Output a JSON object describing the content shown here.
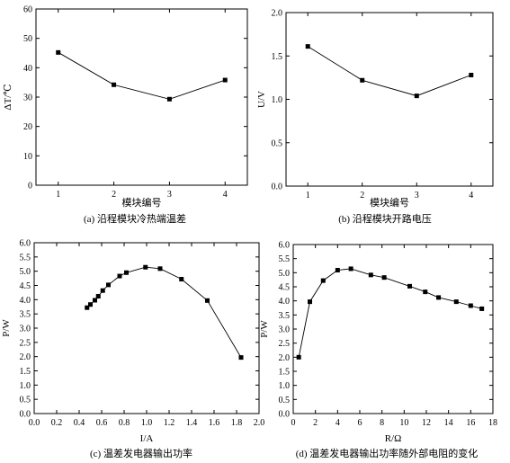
{
  "chart_data": [
    {
      "id": "a",
      "type": "line",
      "caption": "(a) 沿程模块冷热端温差",
      "xlabel": "模块编号",
      "ylabel": "ΔT/℃",
      "x": [
        1,
        2,
        3,
        4
      ],
      "y": [
        45.2,
        34.2,
        29.3,
        35.8
      ],
      "xlim": [
        0.6,
        4.4
      ],
      "ylim": [
        0,
        60
      ],
      "xticks": [
        1,
        2,
        3,
        4
      ],
      "xtick_labels": [
        "1",
        "2",
        "3",
        "4"
      ],
      "yticks": [
        0,
        10,
        20,
        30,
        40,
        50,
        60
      ],
      "ytick_labels": [
        "0",
        "10",
        "20",
        "30",
        "40",
        "50",
        "60"
      ],
      "grid": false,
      "marker": "square"
    },
    {
      "id": "b",
      "type": "line",
      "caption": "(b) 沿程模块开路电压",
      "xlabel": "模块编号",
      "ylabel": "U/V",
      "x": [
        1,
        2,
        3,
        4
      ],
      "y": [
        1.61,
        1.22,
        1.04,
        1.28
      ],
      "xlim": [
        0.6,
        4.4
      ],
      "ylim": [
        0,
        2.0
      ],
      "xticks": [
        1,
        2,
        3,
        4
      ],
      "xtick_labels": [
        "1",
        "2",
        "3",
        "4"
      ],
      "yticks": [
        0,
        0.5,
        1.0,
        1.5,
        2.0
      ],
      "ytick_labels": [
        "0.0",
        "0.5",
        "1.0",
        "1.5",
        "2.0"
      ],
      "grid": false,
      "marker": "square"
    },
    {
      "id": "c",
      "type": "line",
      "caption": "(c) 温差发电器输出功率",
      "xlabel": "I/A",
      "ylabel": "P/W",
      "x": [
        0.47,
        0.5,
        0.54,
        0.57,
        0.61,
        0.66,
        0.76,
        0.82,
        0.99,
        1.12,
        1.31,
        1.54,
        1.84
      ],
      "y": [
        3.72,
        3.83,
        3.98,
        4.12,
        4.32,
        4.52,
        4.83,
        4.95,
        5.14,
        5.09,
        4.72,
        3.97,
        1.97
      ],
      "xlim": [
        0,
        2.0
      ],
      "ylim": [
        0,
        6.0
      ],
      "xticks": [
        0,
        0.2,
        0.4,
        0.6,
        0.8,
        1.0,
        1.2,
        1.4,
        1.6,
        1.8,
        2.0
      ],
      "xtick_labels": [
        "0.0",
        "0.2",
        "0.4",
        "0.6",
        "0.8",
        "1.0",
        "1.2",
        "1.4",
        "1.6",
        "1.8",
        "2.0"
      ],
      "yticks": [
        0,
        0.5,
        1.0,
        1.5,
        2.0,
        2.5,
        3.0,
        3.5,
        4.0,
        4.5,
        5.0,
        5.5,
        6.0
      ],
      "ytick_labels": [
        "0.0",
        "0.5",
        "1.0",
        "1.5",
        "2.0",
        "2.5",
        "3.0",
        "3.5",
        "4.0",
        "4.5",
        "5.0",
        "5.5",
        "6.0"
      ],
      "grid": false,
      "marker": "square"
    },
    {
      "id": "d",
      "type": "line",
      "caption": "(d) 温差发电器输出功率随外部电阻的变化",
      "xlabel": "R/Ω",
      "ylabel": "P/W",
      "x": [
        0.5,
        1.5,
        2.7,
        4.0,
        5.2,
        7.0,
        8.2,
        10.5,
        11.9,
        13.1,
        14.7,
        16.0,
        17.0
      ],
      "y": [
        2.0,
        3.97,
        4.72,
        5.09,
        5.14,
        4.92,
        4.83,
        4.52,
        4.32,
        4.12,
        3.97,
        3.83,
        3.72
      ],
      "xlim": [
        0,
        18
      ],
      "ylim": [
        0,
        6.0
      ],
      "xticks": [
        0,
        2,
        4,
        6,
        8,
        10,
        12,
        14,
        16,
        18
      ],
      "xtick_labels": [
        "0",
        "2",
        "4",
        "6",
        "8",
        "10",
        "12",
        "14",
        "16",
        "18"
      ],
      "yticks": [
        0,
        0.5,
        1.0,
        1.5,
        2.0,
        2.5,
        3.0,
        3.5,
        4.0,
        4.5,
        5.0,
        5.5,
        6.0
      ],
      "ytick_labels": [
        "0.0",
        "0.5",
        "1.0",
        "1.5",
        "2.0",
        "2.5",
        "3.0",
        "3.5",
        "4.0",
        "4.5",
        "5.0",
        "5.5",
        "6.0"
      ],
      "grid": false,
      "marker": "square"
    }
  ]
}
